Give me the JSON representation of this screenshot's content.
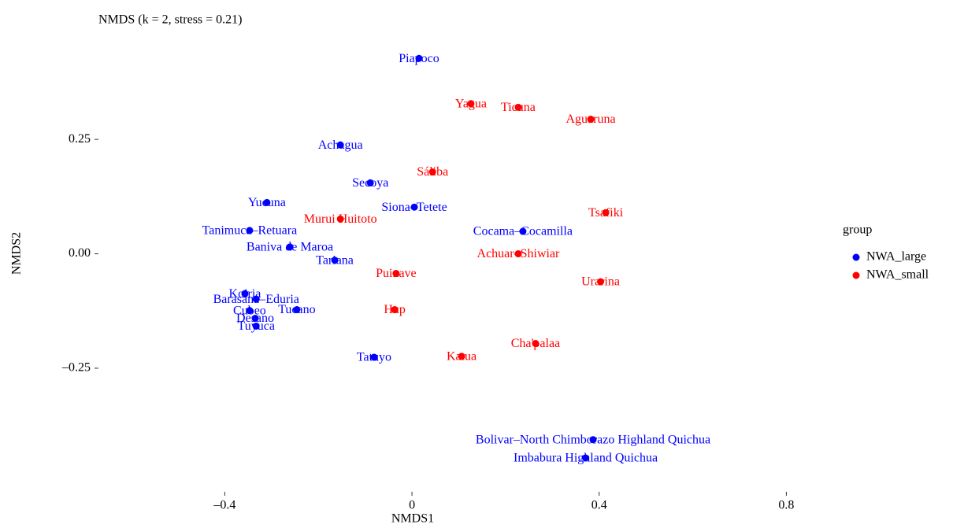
{
  "chart_data": {
    "type": "scatter",
    "title": "NMDS (k = 2, stress = 0.21)",
    "x_label": "NMDS1",
    "y_label": "NMDS2",
    "legend_title": "group",
    "legend": "right",
    "xlim": [
      -0.67,
      0.87
    ],
    "ylim": [
      -0.52,
      0.46
    ],
    "xticks": [
      {
        "value": -0.4,
        "label": "–0.4"
      },
      0.0,
      0.4,
      0.8
    ],
    "yticks": [
      0.25,
      {
        "value": 0,
        "label": "0.00"
      },
      {
        "value": -0.25,
        "label": "–0.25"
      }
    ],
    "series": [
      {
        "name": "NWA_large",
        "color": "#0000ff",
        "labels": [
          "Piapoco",
          "Achagua",
          "Secoya",
          "Yucuna",
          "Siona–Tetete",
          "Tanimuca–Retuara",
          "Cocama–Cocamilla",
          "Baniva de Maroa",
          "Tariana",
          "Koiria",
          "Barasana–Eduria",
          "Cubeo",
          "Tucano",
          "Desano",
          "Tuyuca",
          "Tatuyo",
          "Bolivar–North Chimborazo Highland Quichua",
          "Imbabura Highland Quichua"
        ],
        "x": [
          0.015,
          -0.153,
          -0.089,
          -0.31,
          0.005,
          -0.347,
          0.237,
          -0.261,
          -0.165,
          -0.357,
          -0.333,
          -0.347,
          -0.246,
          -0.335,
          -0.333,
          -0.081,
          0.387,
          0.371
        ],
        "values": [
          0.427,
          0.238,
          0.155,
          0.112,
          0.102,
          0.051,
          0.049,
          0.015,
          -0.014,
          -0.087,
          -0.099,
          -0.124,
          -0.122,
          -0.141,
          -0.158,
          -0.226,
          -0.406,
          -0.446
        ]
      },
      {
        "name": "NWA_small",
        "color": "#ff0000",
        "labels": [
          "Yagua",
          "Ticuna",
          "Aguaruna",
          "Sáliba",
          "Tsafiki",
          "Murui Huitoto",
          "Achuar–Shiwiar",
          "Puinave",
          "Urarina",
          "Hup",
          "Cha'palaa",
          "Katua"
        ],
        "x": [
          0.126,
          0.227,
          0.382,
          0.044,
          0.414,
          -0.153,
          0.227,
          -0.034,
          0.403,
          -0.037,
          0.264,
          0.106
        ],
        "values": [
          0.328,
          0.32,
          0.294,
          0.179,
          0.09,
          0.076,
          0.0,
          -0.043,
          -0.061,
          -0.122,
          -0.196,
          -0.224
        ]
      }
    ]
  }
}
